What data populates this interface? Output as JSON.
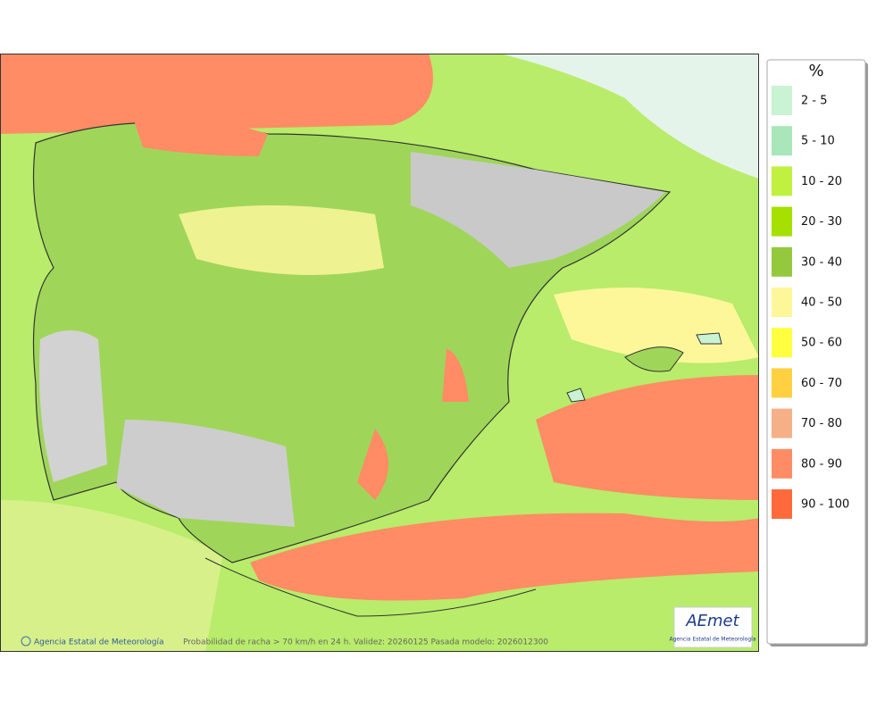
{
  "legend": {
    "title": "%",
    "items": [
      {
        "label": "2 - 5",
        "color": "#c9f3d3"
      },
      {
        "label": "5 - 10",
        "color": "#a9e6ba"
      },
      {
        "label": "10 - 20",
        "color": "#c0f040"
      },
      {
        "label": "20 - 30",
        "color": "#a6e000"
      },
      {
        "label": "30 - 40",
        "color": "#94c93e"
      },
      {
        "label": "40 - 50",
        "color": "#fdf79a"
      },
      {
        "label": "50 - 60",
        "color": "#ffff40"
      },
      {
        "label": "60 - 70",
        "color": "#ffd040"
      },
      {
        "label": "70 - 80",
        "color": "#f6b088"
      },
      {
        "label": "80 - 90",
        "color": "#ff8c64"
      },
      {
        "label": "90 - 100",
        "color": "#ff6a3c"
      }
    ]
  },
  "footer": {
    "credit": "Agencia Estatal de Meteorología",
    "caption": "Probabilidad de racha > 70 km/h en 24 h. Validez: 20260125 Pasada modelo: 2026012300"
  },
  "logo": {
    "name": "AEmet",
    "subtitle": "Agencia Estatal de Meteorología"
  }
}
